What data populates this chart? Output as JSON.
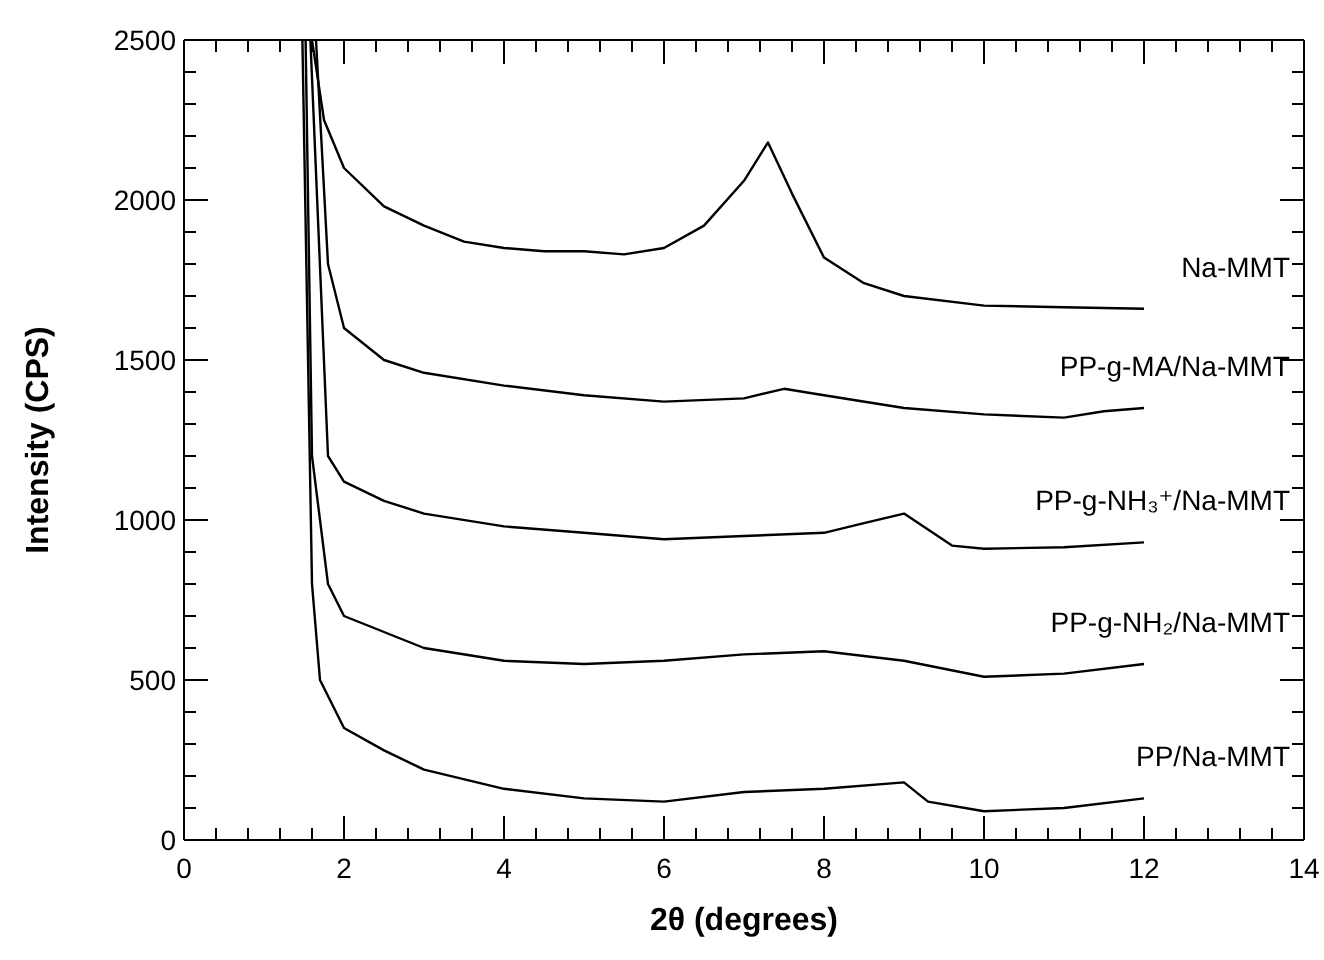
{
  "chart_data": {
    "type": "line",
    "xlabel": "2θ (degrees)",
    "ylabel": "Intensity (CPS)",
    "xlim": [
      0,
      14
    ],
    "ylim": [
      0,
      2500
    ],
    "xticks": [
      0,
      {
        "value": 0.4,
        "label": null
      },
      {
        "value": 0.8,
        "label": null
      },
      {
        "value": 1.2,
        "label": null
      },
      {
        "value": 1.6,
        "label": null
      },
      2,
      {
        "value": 2.4,
        "label": null
      },
      {
        "value": 2.8,
        "label": null
      },
      {
        "value": 3.2,
        "label": null
      },
      {
        "value": 3.6,
        "label": null
      },
      4,
      {
        "value": 4.4,
        "label": null
      },
      {
        "value": 4.8,
        "label": null
      },
      {
        "value": 5.2,
        "label": null
      },
      {
        "value": 5.6,
        "label": null
      },
      6,
      {
        "value": 6.4,
        "label": null
      },
      {
        "value": 6.8,
        "label": null
      },
      {
        "value": 7.2,
        "label": null
      },
      {
        "value": 7.6,
        "label": null
      },
      8,
      {
        "value": 8.4,
        "label": null
      },
      {
        "value": 8.8,
        "label": null
      },
      {
        "value": 9.2,
        "label": null
      },
      {
        "value": 9.6,
        "label": null
      },
      10,
      {
        "value": 10.4,
        "label": null
      },
      {
        "value": 10.8,
        "label": null
      },
      {
        "value": 11.2,
        "label": null
      },
      {
        "value": 11.6,
        "label": null
      },
      12,
      {
        "value": 12.4,
        "label": null
      },
      {
        "value": 12.8,
        "label": null
      },
      {
        "value": 13.2,
        "label": null
      },
      {
        "value": 13.6,
        "label": null
      },
      14
    ],
    "yticks": [
      0,
      {
        "value": 100,
        "label": null
      },
      {
        "value": 200,
        "label": null
      },
      {
        "value": 300,
        "label": null
      },
      {
        "value": 400,
        "label": null
      },
      500,
      {
        "value": 600,
        "label": null
      },
      {
        "value": 700,
        "label": null
      },
      {
        "value": 800,
        "label": null
      },
      {
        "value": 900,
        "label": null
      },
      1000,
      {
        "value": 1100,
        "label": null
      },
      {
        "value": 1200,
        "label": null
      },
      {
        "value": 1300,
        "label": null
      },
      {
        "value": 1400,
        "label": null
      },
      1500,
      {
        "value": 1600,
        "label": null
      },
      {
        "value": 1700,
        "label": null
      },
      {
        "value": 1800,
        "label": null
      },
      {
        "value": 1900,
        "label": null
      },
      2000,
      {
        "value": 2100,
        "label": null
      },
      {
        "value": 2200,
        "label": null
      },
      {
        "value": 2300,
        "label": null
      },
      {
        "value": 2400,
        "label": null
      },
      2500
    ],
    "grid": false,
    "legend": "right",
    "marker": "none",
    "line_style": "solid",
    "series": [
      {
        "name": "Na-MMT",
        "color": "#000000",
        "x": [
          1.6,
          1.75,
          2,
          2.5,
          3,
          3.5,
          4,
          4.5,
          5,
          5.5,
          6,
          6.5,
          7,
          7.3,
          7.6,
          8,
          8.5,
          9,
          10,
          11,
          12
        ],
        "values": [
          2500,
          2250,
          2100,
          1980,
          1920,
          1870,
          1850,
          1840,
          1840,
          1830,
          1850,
          1920,
          2060,
          2180,
          2020,
          1820,
          1740,
          1700,
          1670,
          1665,
          1660
        ]
      },
      {
        "name": "PP-g-MA/Na-MMT",
        "color": "#000000",
        "x": [
          1.65,
          1.8,
          2,
          2.5,
          3,
          4,
          5,
          6,
          7,
          7.5,
          8,
          9,
          10,
          11,
          11.5,
          12
        ],
        "values": [
          2500,
          1800,
          1600,
          1500,
          1460,
          1420,
          1390,
          1370,
          1380,
          1410,
          1390,
          1350,
          1330,
          1320,
          1340,
          1350
        ]
      },
      {
        "name": "PP-g-NH₃⁺/Na-MMT",
        "color": "#000000",
        "x": [
          1.58,
          1.8,
          2,
          2.5,
          3,
          4,
          5,
          6,
          7,
          8,
          8.5,
          9,
          9.3,
          9.6,
          10,
          11,
          12
        ],
        "values": [
          2500,
          1200,
          1120,
          1060,
          1020,
          980,
          960,
          940,
          950,
          960,
          990,
          1020,
          970,
          920,
          910,
          915,
          930
        ]
      },
      {
        "name": "PP-g-NH₂/Na-MMT",
        "color": "#000000",
        "x": [
          1.52,
          1.6,
          1.8,
          2,
          2.5,
          3,
          4,
          5,
          6,
          7,
          8,
          9,
          10,
          11,
          12
        ],
        "values": [
          2500,
          1200,
          800,
          700,
          650,
          600,
          560,
          550,
          560,
          580,
          590,
          560,
          510,
          520,
          550
        ]
      },
      {
        "name": "PP/Na-MMT",
        "color": "#000000",
        "x": [
          1.48,
          1.6,
          1.7,
          2,
          2.5,
          3,
          4,
          5,
          6,
          7,
          8,
          9,
          9.3,
          10,
          11,
          12
        ],
        "values": [
          2500,
          800,
          500,
          350,
          280,
          220,
          160,
          130,
          120,
          150,
          160,
          180,
          120,
          90,
          100,
          130
        ]
      }
    ]
  }
}
